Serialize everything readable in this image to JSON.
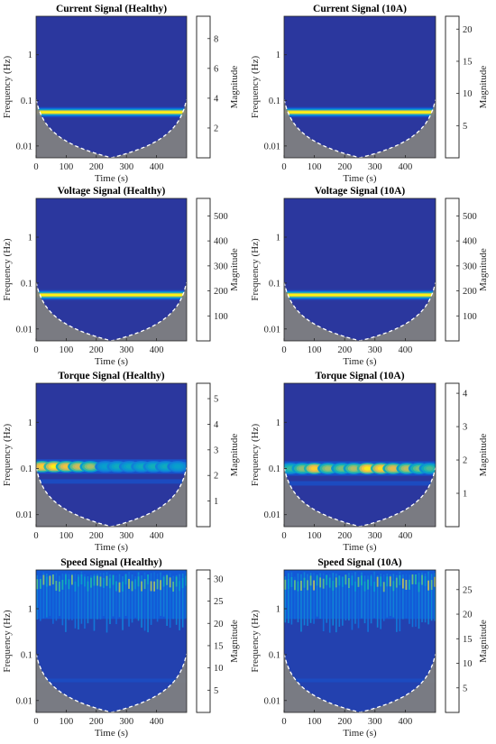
{
  "figure": {
    "common": {
      "xlabel": "Time (s)",
      "ylabel": "Frequency (Hz)",
      "colorbar_label": "Magnitude",
      "x_ticks": [
        "0",
        "100",
        "200",
        "300",
        "400"
      ],
      "y_ticks": [
        "0.01",
        "0.1",
        "1"
      ],
      "colormap": "parula",
      "coi_shading_color": "#808080"
    }
  },
  "chart_data": [
    {
      "type": "heatmap",
      "title": "Current Signal (Healthy)",
      "xlabel": "Time (s)",
      "ylabel": "Frequency (Hz)",
      "xlim": [
        0,
        500
      ],
      "ylim": [
        0.0055,
        7
      ],
      "yscale": "log",
      "colorbar": {
        "label": "Magnitude",
        "ticks": [
          2,
          4,
          6,
          8
        ],
        "range": [
          0,
          9.5
        ]
      },
      "content": {
        "pattern": "band",
        "band_center_hz": 0.055,
        "band_peak_magnitude": 9.5
      }
    },
    {
      "type": "heatmap",
      "title": "Current Signal (10A)",
      "xlabel": "Time (s)",
      "ylabel": "Frequency (Hz)",
      "xlim": [
        0,
        500
      ],
      "ylim": [
        0.0055,
        7
      ],
      "yscale": "log",
      "colorbar": {
        "label": "Magnitude",
        "ticks": [
          5,
          10,
          15,
          20
        ],
        "range": [
          0,
          22
        ]
      },
      "content": {
        "pattern": "band",
        "band_center_hz": 0.055,
        "band_peak_magnitude": 22
      }
    },
    {
      "type": "heatmap",
      "title": "Voltage Signal (Healthy)",
      "xlabel": "Time (s)",
      "ylabel": "Frequency (Hz)",
      "xlim": [
        0,
        500
      ],
      "ylim": [
        0.0055,
        7
      ],
      "yscale": "log",
      "colorbar": {
        "label": "Magnitude",
        "ticks": [
          100,
          200,
          300,
          400,
          500
        ],
        "range": [
          0,
          570
        ]
      },
      "content": {
        "pattern": "band",
        "band_center_hz": 0.055,
        "band_peak_magnitude": 570
      }
    },
    {
      "type": "heatmap",
      "title": "Voltage Signal (10A)",
      "xlabel": "Time (s)",
      "ylabel": "Frequency (Hz)",
      "xlim": [
        0,
        500
      ],
      "ylim": [
        0.0055,
        7
      ],
      "yscale": "log",
      "colorbar": {
        "label": "Magnitude",
        "ticks": [
          100,
          200,
          300,
          400,
          500
        ],
        "range": [
          0,
          570
        ]
      },
      "content": {
        "pattern": "band",
        "band_center_hz": 0.055,
        "band_peak_magnitude": 570
      }
    },
    {
      "type": "heatmap",
      "title": "Torque Signal (Healthy)",
      "xlabel": "Time (s)",
      "ylabel": "Frequency (Hz)",
      "xlim": [
        0,
        500
      ],
      "ylim": [
        0.0055,
        7
      ],
      "yscale": "log",
      "colorbar": {
        "label": "Magnitude",
        "ticks": [
          1,
          2,
          3,
          4,
          5
        ],
        "range": [
          0,
          5.6
        ]
      },
      "content": {
        "pattern": "torque",
        "band_center_hz": 0.11,
        "peaks": [
          {
            "t": 20,
            "mag": 5.2
          },
          {
            "t": 60,
            "mag": 5.5
          },
          {
            "t": 100,
            "mag": 5.0
          },
          {
            "t": 140,
            "mag": 4.6
          },
          {
            "t": 180,
            "mag": 4.2
          },
          {
            "t": 230,
            "mag": 2.6
          },
          {
            "t": 270,
            "mag": 2.9
          },
          {
            "t": 310,
            "mag": 2.8
          },
          {
            "t": 350,
            "mag": 2.9
          },
          {
            "t": 390,
            "mag": 3.0
          },
          {
            "t": 430,
            "mag": 2.9
          },
          {
            "t": 470,
            "mag": 2.6
          }
        ]
      }
    },
    {
      "type": "heatmap",
      "title": "Torque Signal (10A)",
      "xlabel": "Time (s)",
      "ylabel": "Frequency (Hz)",
      "xlim": [
        0,
        500
      ],
      "ylim": [
        0.0055,
        7
      ],
      "yscale": "log",
      "colorbar": {
        "label": "Magnitude",
        "ticks": [
          1,
          2,
          3,
          4
        ],
        "range": [
          0,
          4.3
        ]
      },
      "content": {
        "pattern": "torque",
        "band_center_hz": 0.1,
        "peaks": [
          {
            "t": 20,
            "mag": 2.6
          },
          {
            "t": 60,
            "mag": 3.1
          },
          {
            "t": 100,
            "mag": 4.0
          },
          {
            "t": 145,
            "mag": 3.2
          },
          {
            "t": 190,
            "mag": 3.0
          },
          {
            "t": 230,
            "mag": 3.3
          },
          {
            "t": 275,
            "mag": 4.2
          },
          {
            "t": 320,
            "mag": 4.1
          },
          {
            "t": 360,
            "mag": 3.7
          },
          {
            "t": 405,
            "mag": 3.4
          },
          {
            "t": 445,
            "mag": 3.0
          },
          {
            "t": 480,
            "mag": 2.7
          }
        ]
      }
    },
    {
      "type": "heatmap",
      "title": "Speed Signal (Healthy)",
      "xlabel": "Time (s)",
      "ylabel": "Frequency (Hz)",
      "xlim": [
        0,
        500
      ],
      "ylim": [
        0.0055,
        7
      ],
      "yscale": "log",
      "colorbar": {
        "label": "Magnitude",
        "ticks": [
          5,
          10,
          15,
          20,
          25,
          30
        ],
        "range": [
          0,
          32
        ]
      },
      "content": {
        "pattern": "speed",
        "high_freq_peak_magnitude": 30
      }
    },
    {
      "type": "heatmap",
      "title": "Speed Signal (10A)",
      "xlabel": "Time (s)",
      "ylabel": "Frequency (Hz)",
      "xlim": [
        0,
        500
      ],
      "ylim": [
        0.0055,
        7
      ],
      "yscale": "log",
      "colorbar": {
        "label": "Magnitude",
        "ticks": [
          5,
          10,
          15,
          20,
          25
        ],
        "range": [
          0,
          29
        ]
      },
      "content": {
        "pattern": "speed",
        "high_freq_peak_magnitude": 28
      }
    }
  ]
}
